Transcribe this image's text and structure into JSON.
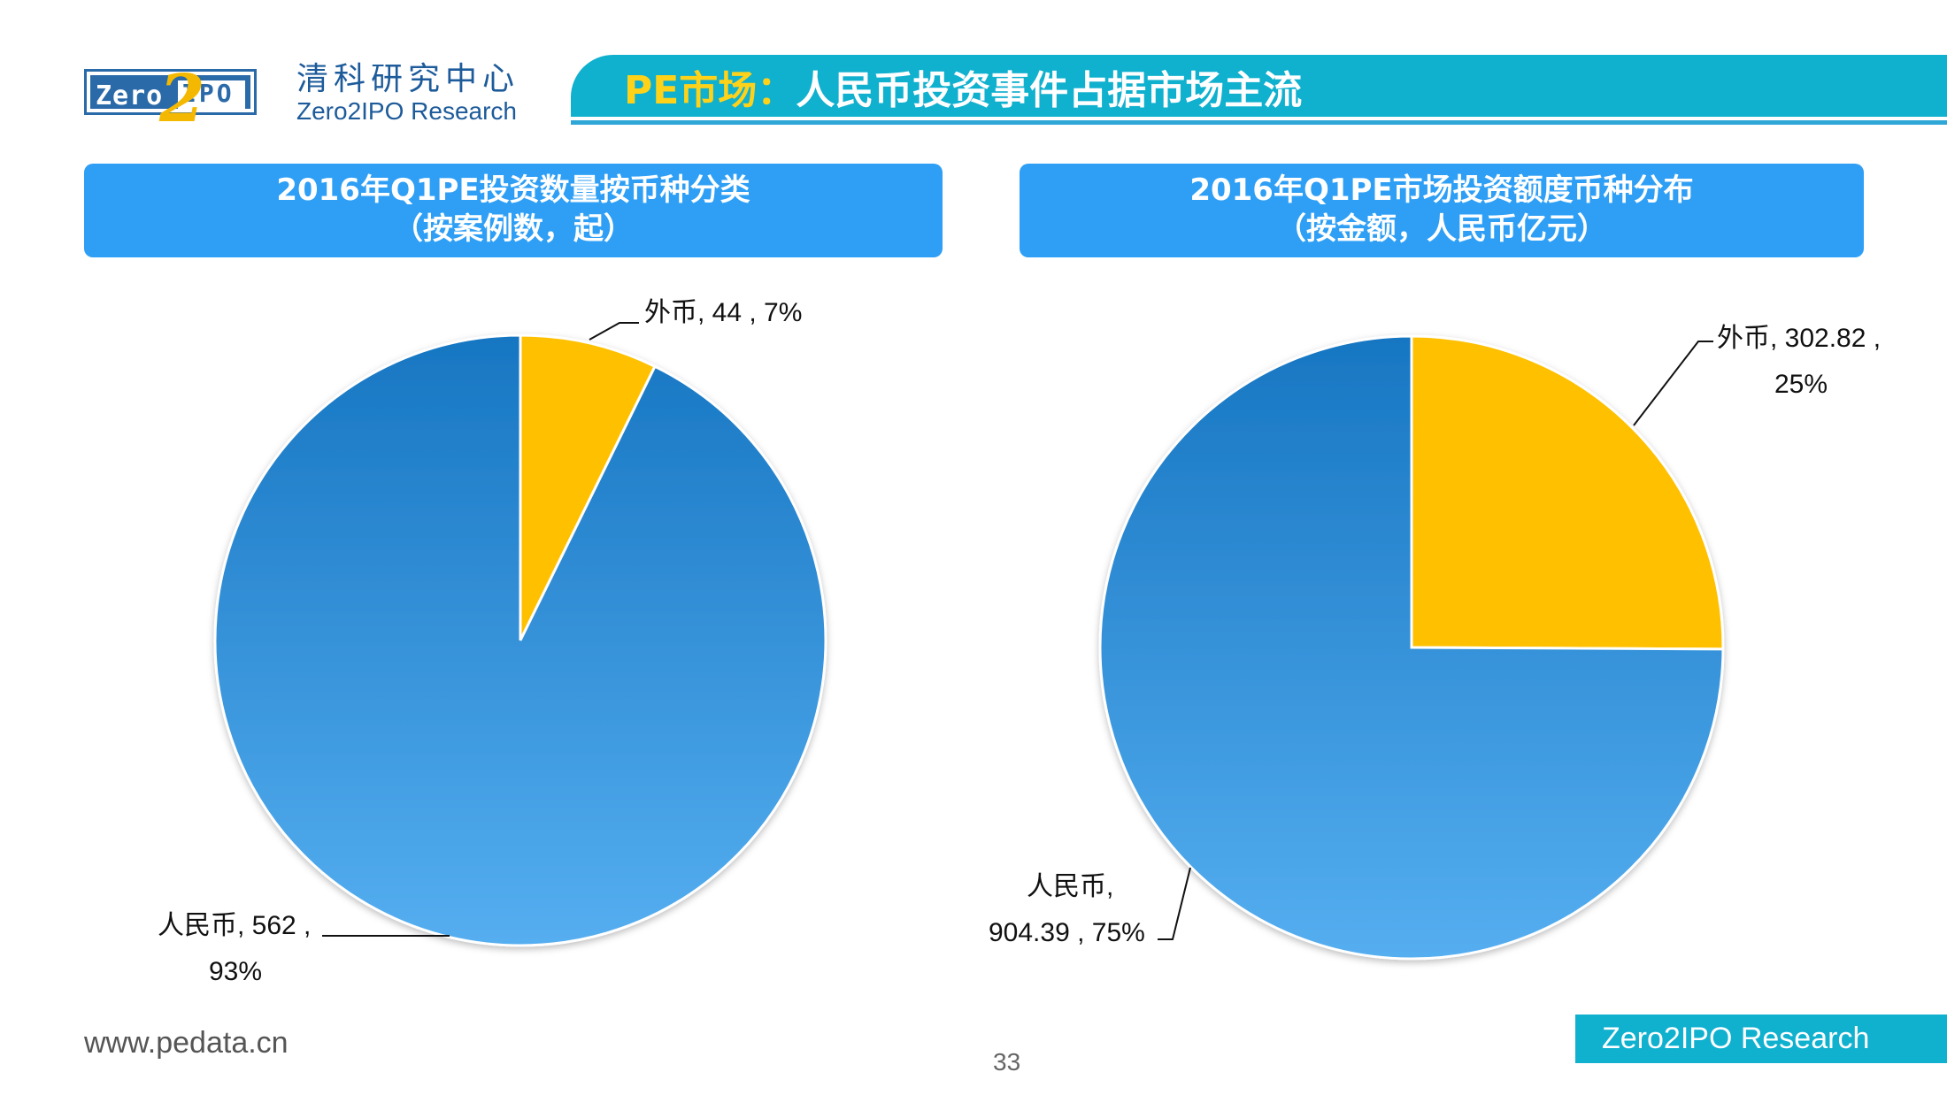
{
  "header": {
    "logo_left": "Zero",
    "logo_right": "IPO",
    "logo_two": "2",
    "brand_cn": "清科研究中心",
    "brand_en": "Zero2IPO Research",
    "title_prefix": "PE市场：",
    "title_main": "人民币投资事件占据市场主流"
  },
  "chart_data": [
    {
      "type": "pie",
      "title": "2016年Q1PE投资数量按币种分类",
      "subtitle": "（按案例数，起）",
      "slices": [
        {
          "name": "外币",
          "value": 44,
          "percent": 7,
          "color": "#ffc000"
        },
        {
          "name": "人民币",
          "value": 562,
          "percent": 93,
          "color": "#2f8fdb"
        }
      ],
      "labels": [
        {
          "line1": "外币, 44 , 7%",
          "line2": ""
        },
        {
          "line1": "人民币, 562 ,",
          "line2": "93%"
        }
      ]
    },
    {
      "type": "pie",
      "title": "2016年Q1PE市场投资额度币种分布",
      "subtitle": "（按金额，人民币亿元）",
      "slices": [
        {
          "name": "外币",
          "value": 302.82,
          "percent": 25,
          "color": "#ffc000"
        },
        {
          "name": "人民币",
          "value": 904.39,
          "percent": 75,
          "color": "#2f8fdb"
        }
      ],
      "labels": [
        {
          "line1": "外币, 302.82 ,",
          "line2": "25%"
        },
        {
          "line1": "人民币,",
          "line2": "904.39 , 75%"
        }
      ]
    }
  ],
  "footer": {
    "url": "www.pedata.cn",
    "page": "33",
    "brand": "Zero2IPO Research"
  }
}
